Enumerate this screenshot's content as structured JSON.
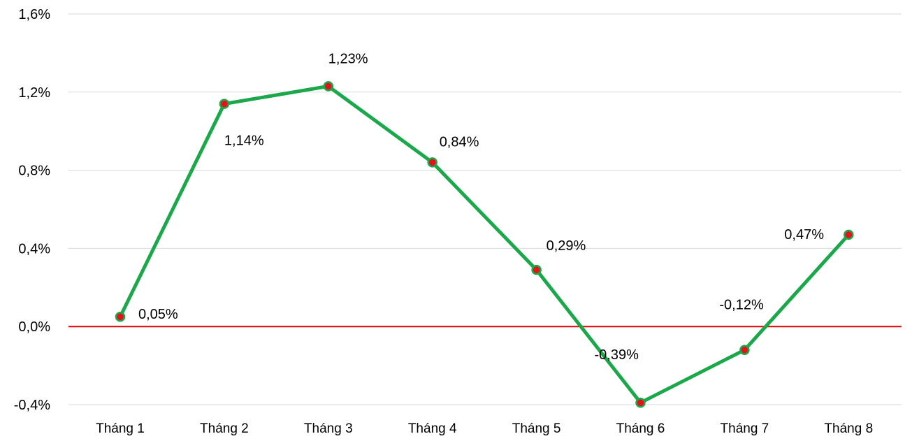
{
  "chart_data": {
    "type": "line",
    "categories": [
      "Tháng 1",
      "Tháng 2",
      "Tháng 3",
      "Tháng 4",
      "Tháng 5",
      "Tháng 6",
      "Tháng 7",
      "Tháng 8"
    ],
    "values": [
      0.05,
      1.14,
      1.23,
      0.84,
      0.29,
      -0.39,
      -0.12,
      0.47
    ],
    "data_labels": [
      "0,05%",
      "1,14%",
      "1,23%",
      "0,84%",
      "0,29%",
      "-0,39%",
      "-0,12%",
      "0,47%"
    ],
    "title": "",
    "xlabel": "",
    "ylabel": "",
    "ylim": [
      -0.4,
      1.6
    ],
    "yticks": [
      -0.4,
      0.0,
      0.4,
      0.8,
      1.2,
      1.6
    ],
    "ytick_labels": [
      "-0,4%",
      "0,0%",
      "0,4%",
      "0,8%",
      "1,2%",
      "1,6%"
    ],
    "grid": "horizontal",
    "zero_line": true,
    "legend": "none",
    "colors": {
      "line": "#1aa84b",
      "marker_fill": "#e8111a",
      "marker_stroke": "#1aa84b",
      "zero_line": "#e30000",
      "grid": "#d9d9d9"
    }
  }
}
